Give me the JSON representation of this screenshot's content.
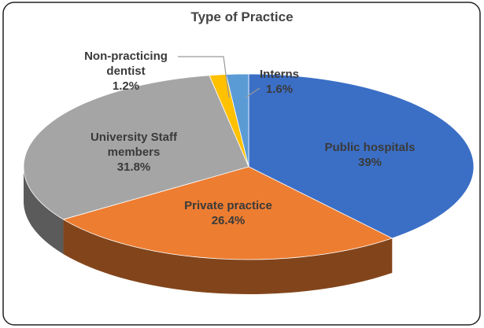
{
  "chart_data": {
    "type": "pie",
    "title": "Type of Practice",
    "categories": [
      "Public hospitals",
      "Private practice",
      "University Staff members",
      "Non-practicing dentist",
      "Interns"
    ],
    "values": [
      39,
      26.4,
      31.8,
      1.2,
      1.6
    ],
    "value_labels": [
      "39%",
      "26.4%",
      "31.8%",
      "1.2%",
      "1.6%"
    ],
    "colors": [
      "#3b6fc6",
      "#ed7d31",
      "#a5a5a5",
      "#ffc000",
      "#5b9bd5"
    ]
  }
}
